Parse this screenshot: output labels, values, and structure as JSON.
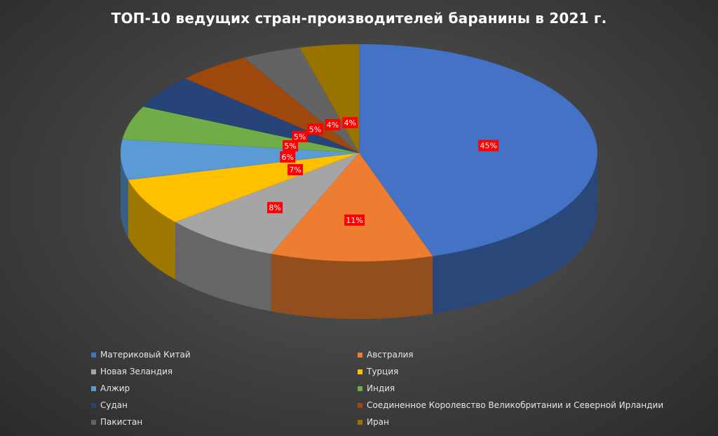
{
  "chart_data": {
    "type": "pie",
    "title": "ТОП-10 ведущих стран-производителей баранины в 2021 г.",
    "categories": [
      "Материковый Китай",
      "Австралия",
      "Новая Зеландия",
      "Турция",
      "Алжир",
      "Индия",
      "Судан",
      "Соединенное Королевство Великобритании и Северной Ирландии",
      "Пакистан",
      "Иран"
    ],
    "values": [
      45,
      11,
      8,
      7,
      6,
      5,
      5,
      5,
      4,
      4
    ],
    "data_labels": [
      "45%",
      "11%",
      "8%",
      "7%",
      "6%",
      "5%",
      "5%",
      "5%",
      "4%",
      "4%"
    ],
    "colors": [
      "#4472C4",
      "#ED7D31",
      "#A5A5A5",
      "#FFC000",
      "#5B9BD5",
      "#70AD47",
      "#264478",
      "#9E480E",
      "#636363",
      "#997300"
    ],
    "label_box_color": "#FF0000",
    "style": "3d",
    "legend_position": "bottom"
  }
}
